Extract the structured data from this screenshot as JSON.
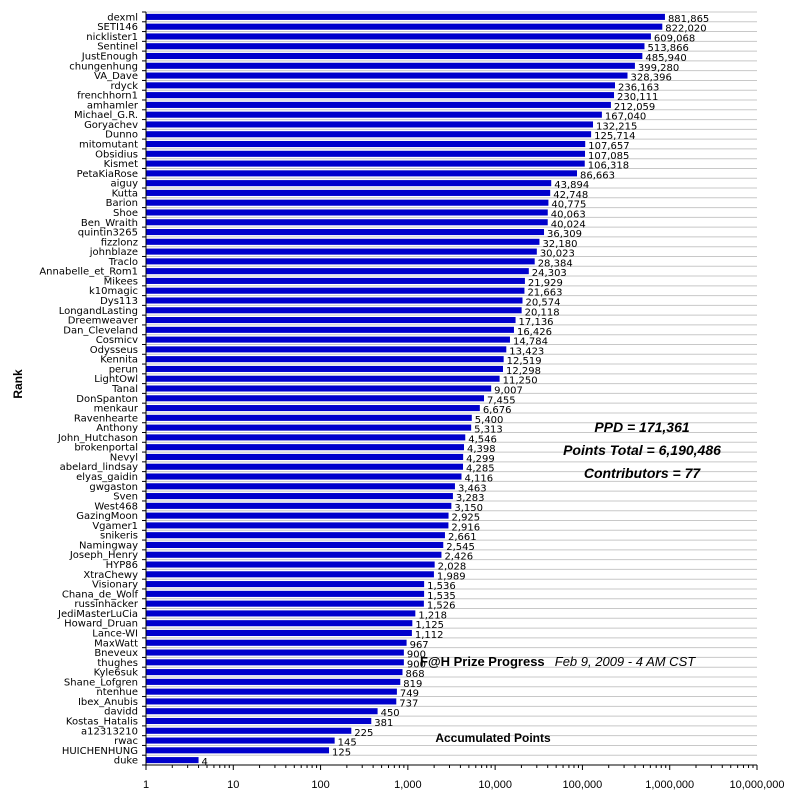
{
  "chart_data": {
    "type": "bar",
    "orientation": "horizontal",
    "xscale": "log",
    "xlim": [
      1,
      10000000
    ],
    "xlabel": "Accumulated Points",
    "ylabel": "Rank",
    "x_ticks": [
      "1",
      "10",
      "100",
      "1,000",
      "10,000",
      "100,000",
      "1,000,000",
      "10,000,000"
    ],
    "bar_color": "#0000cc",
    "grid": true,
    "stats": {
      "ppd": "PPD = 171,361",
      "points_total": "Points Total = 6,190,486",
      "contributors": "Contributors = 77"
    },
    "caption": {
      "title": "F@H Prize Progress",
      "date": "Feb 9, 2009 - 4 AM CST"
    },
    "categories": [
      "dexml",
      "SETI146",
      "nicklister1",
      "Sentinel",
      "JustEnough",
      "chungenhung",
      "VA_Dave",
      "rdyck",
      "frenchhorn1",
      "amhamler",
      "Michael_G.R.",
      "Goryachev",
      "Dunno",
      "mitomutant",
      "Obsidius",
      "Kismet",
      "PetaKiaRose",
      "aiguy",
      "Kutta",
      "Barion",
      "Shoe",
      "Ben_Wraith",
      "quintin3265",
      "fizzlonz",
      "johnblaze",
      "Traclo",
      "Annabelle_et_Rom1",
      "Mikees",
      "k10magic",
      "Dys113",
      "LongandLasting",
      "Dreemweaver",
      "Dan_Cleveland",
      "Cosmicv",
      "Odysseus",
      "Kennita",
      "perun",
      "LightOwl",
      "Tanal",
      "DonSpanton",
      "menkaur",
      "Ravenhearte",
      "Anthony",
      "John_Hutchason",
      "brokenportal",
      "Nevyl",
      "abelard_lindsay",
      "elyas_gaidin",
      "gwgaston",
      "Sven",
      "West468",
      "GazingMoon",
      "Vgamer1",
      "snikeris",
      "Namingway",
      "Joseph_Henry",
      "HYP86",
      "XtraChewy",
      "Visionary",
      "Chana_de_Wolf",
      "russinhacker",
      "JediMasterLuCia",
      "Howard_Druan",
      "Lance-WI",
      "MaxWatt",
      "Bneveux",
      "thughes",
      "Kyle6suk",
      "Shane_Lofgren",
      "ntenhue",
      "Ibex_Anubis",
      "davidd",
      "Kostas_Hatalis",
      "a12313210",
      "rwac",
      "HUICHENHUNG",
      "duke"
    ],
    "values": [
      881865,
      822020,
      609068,
      513866,
      485940,
      399280,
      328396,
      236163,
      230111,
      212059,
      167040,
      132215,
      125714,
      107657,
      107085,
      106318,
      86663,
      43894,
      42748,
      40775,
      40063,
      40024,
      36309,
      32180,
      30023,
      28384,
      24303,
      21929,
      21663,
      20574,
      20118,
      17136,
      16426,
      14784,
      13423,
      12519,
      12298,
      11250,
      9007,
      7455,
      6676,
      5400,
      5313,
      4546,
      4398,
      4299,
      4285,
      4116,
      3463,
      3283,
      3150,
      2925,
      2916,
      2661,
      2545,
      2426,
      2028,
      1989,
      1536,
      1535,
      1526,
      1218,
      1125,
      1112,
      967,
      900,
      900,
      868,
      819,
      749,
      737,
      450,
      381,
      225,
      145,
      125,
      4
    ],
    "value_labels": [
      "881,865",
      "822,020",
      "609,068",
      "513,866",
      "485,940",
      "399,280",
      "328,396",
      "236,163",
      "230,111",
      "212,059",
      "167,040",
      "132,215",
      "125,714",
      "107,657",
      "107,085",
      "106,318",
      "86,663",
      "43,894",
      "42,748",
      "40,775",
      "40,063",
      "40,024",
      "36,309",
      "32,180",
      "30,023",
      "28,384",
      "24,303",
      "21,929",
      "21,663",
      "20,574",
      "20,118",
      "17,136",
      "16,426",
      "14,784",
      "13,423",
      "12,519",
      "12,298",
      "11,250",
      "9,007",
      "7,455",
      "6,676",
      "5,400",
      "5,313",
      "4,546",
      "4,398",
      "4,299",
      "4,285",
      "4,116",
      "3,463",
      "3,283",
      "3,150",
      "2,925",
      "2,916",
      "2,661",
      "2,545",
      "2,426",
      "2,028",
      "1,989",
      "1,536",
      "1,535",
      "1,526",
      "1,218",
      "1,125",
      "1,112",
      "967",
      "900",
      "900",
      "868",
      "819",
      "749",
      "737",
      "450",
      "381",
      "225",
      "145",
      "125",
      "4"
    ]
  }
}
